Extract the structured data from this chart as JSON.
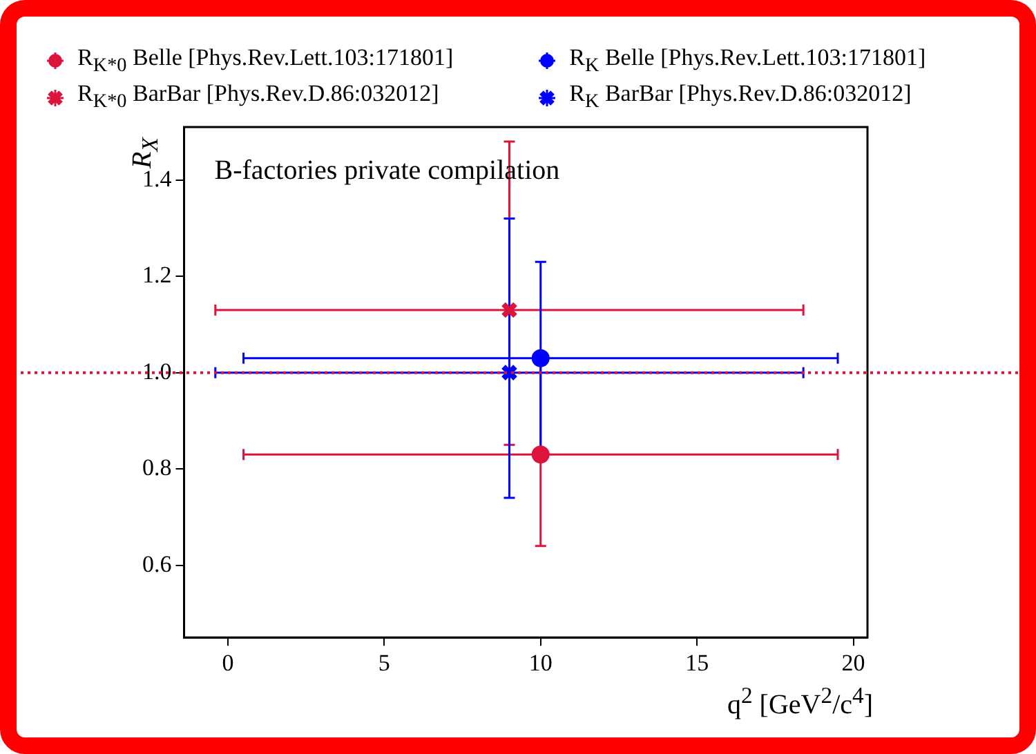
{
  "chart_data": {
    "type": "scatter",
    "xlabel": "q$^{2}$ [GeV$^{2}$/c$^{4}$]",
    "ylabel": "R$_{X}$",
    "annotations": [
      "B-factories private compilation"
    ],
    "xlim": [
      -1.4,
      20.45
    ],
    "ylim": [
      0.45,
      1.51
    ],
    "xticks": [
      0,
      5,
      10,
      15,
      20
    ],
    "yticks": [
      0.6,
      0.8,
      {
        "value": 1,
        "label": "1.0"
      },
      1.2,
      1.4
    ],
    "legend": "top",
    "ref_lines": [
      {
        "axis": "y",
        "value": 1,
        "color": "#dc143c",
        "line_style": "dotted"
      }
    ],
    "x": [
      9,
      10
    ],
    "series": [
      {
        "name": "R$_{K*0}$ Belle [Phys.Rev.Lett.103:171801]",
        "color": "#dc143c",
        "marker": "circle",
        "values": [
          null,
          0.83
        ],
        "errors": [
          null,
          0.19
        ],
        "xerrors": [
          null,
          9.5
        ]
      },
      {
        "name": "R$_{K*0}$ BarBar [Phys.Rev.D.86:032012]",
        "color": "#dc143c",
        "marker": "cross",
        "values": [
          1.13,
          null
        ],
        "errors": [
          [
            0.85,
            1.48
          ],
          null
        ],
        "xerrors": [
          9.4,
          null
        ]
      },
      {
        "name": "R$_{K}$ Belle [Phys.Rev.Lett.103:171801]",
        "color": "#0000ff",
        "marker": "circle",
        "values": [
          null,
          1.03
        ],
        "errors": [
          null,
          0.2
        ],
        "xerrors": [
          null,
          9.5
        ]
      },
      {
        "name": "R$_{K}$ BarBar [Phys.Rev.D.86:032012]",
        "color": "#0000ff",
        "marker": "cross",
        "values": [
          1.0,
          null
        ],
        "errors": [
          [
            0.74,
            1.32
          ],
          null
        ],
        "xerrors": [
          9.4,
          null
        ]
      }
    ]
  }
}
